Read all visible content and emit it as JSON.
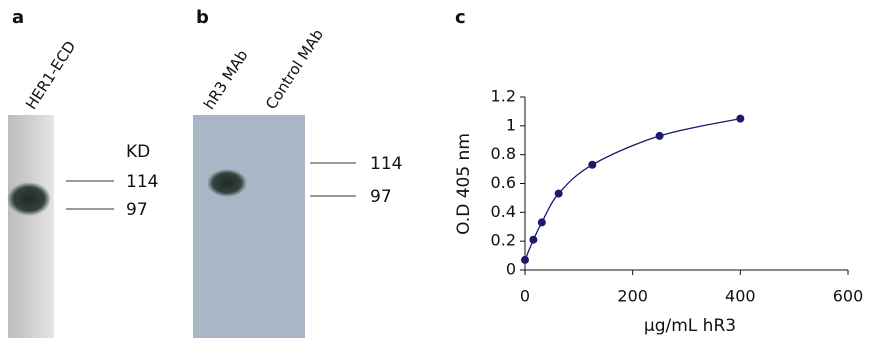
{
  "figure": {
    "panel_a": {
      "label": "a",
      "lanes": [
        "HER1-ECD"
      ],
      "unit": "KD",
      "markers": [
        114,
        97
      ]
    },
    "panel_b": {
      "label": "b",
      "lanes": [
        "hR3 MAb",
        "Control MAb"
      ],
      "markers": [
        114,
        97
      ]
    },
    "panel_c": {
      "label": "c"
    }
  },
  "chart_data": {
    "type": "line",
    "x_label": "µg/mL hR3",
    "y_label": "O.D 405 nm",
    "x": [
      0,
      15.6,
      31.25,
      62.5,
      125,
      250,
      400
    ],
    "series": [
      {
        "color": "#1a1a6e",
        "values": [
          0.07,
          0.21,
          0.33,
          0.53,
          0.73,
          0.93,
          1.05
        ]
      }
    ],
    "xlim": [
      0,
      600
    ],
    "xticks": [
      0,
      200,
      400,
      600
    ],
    "ylim": [
      0,
      1.2
    ],
    "yticks": [
      0,
      0.2,
      0.4,
      0.6,
      0.8,
      1,
      1.2
    ]
  }
}
